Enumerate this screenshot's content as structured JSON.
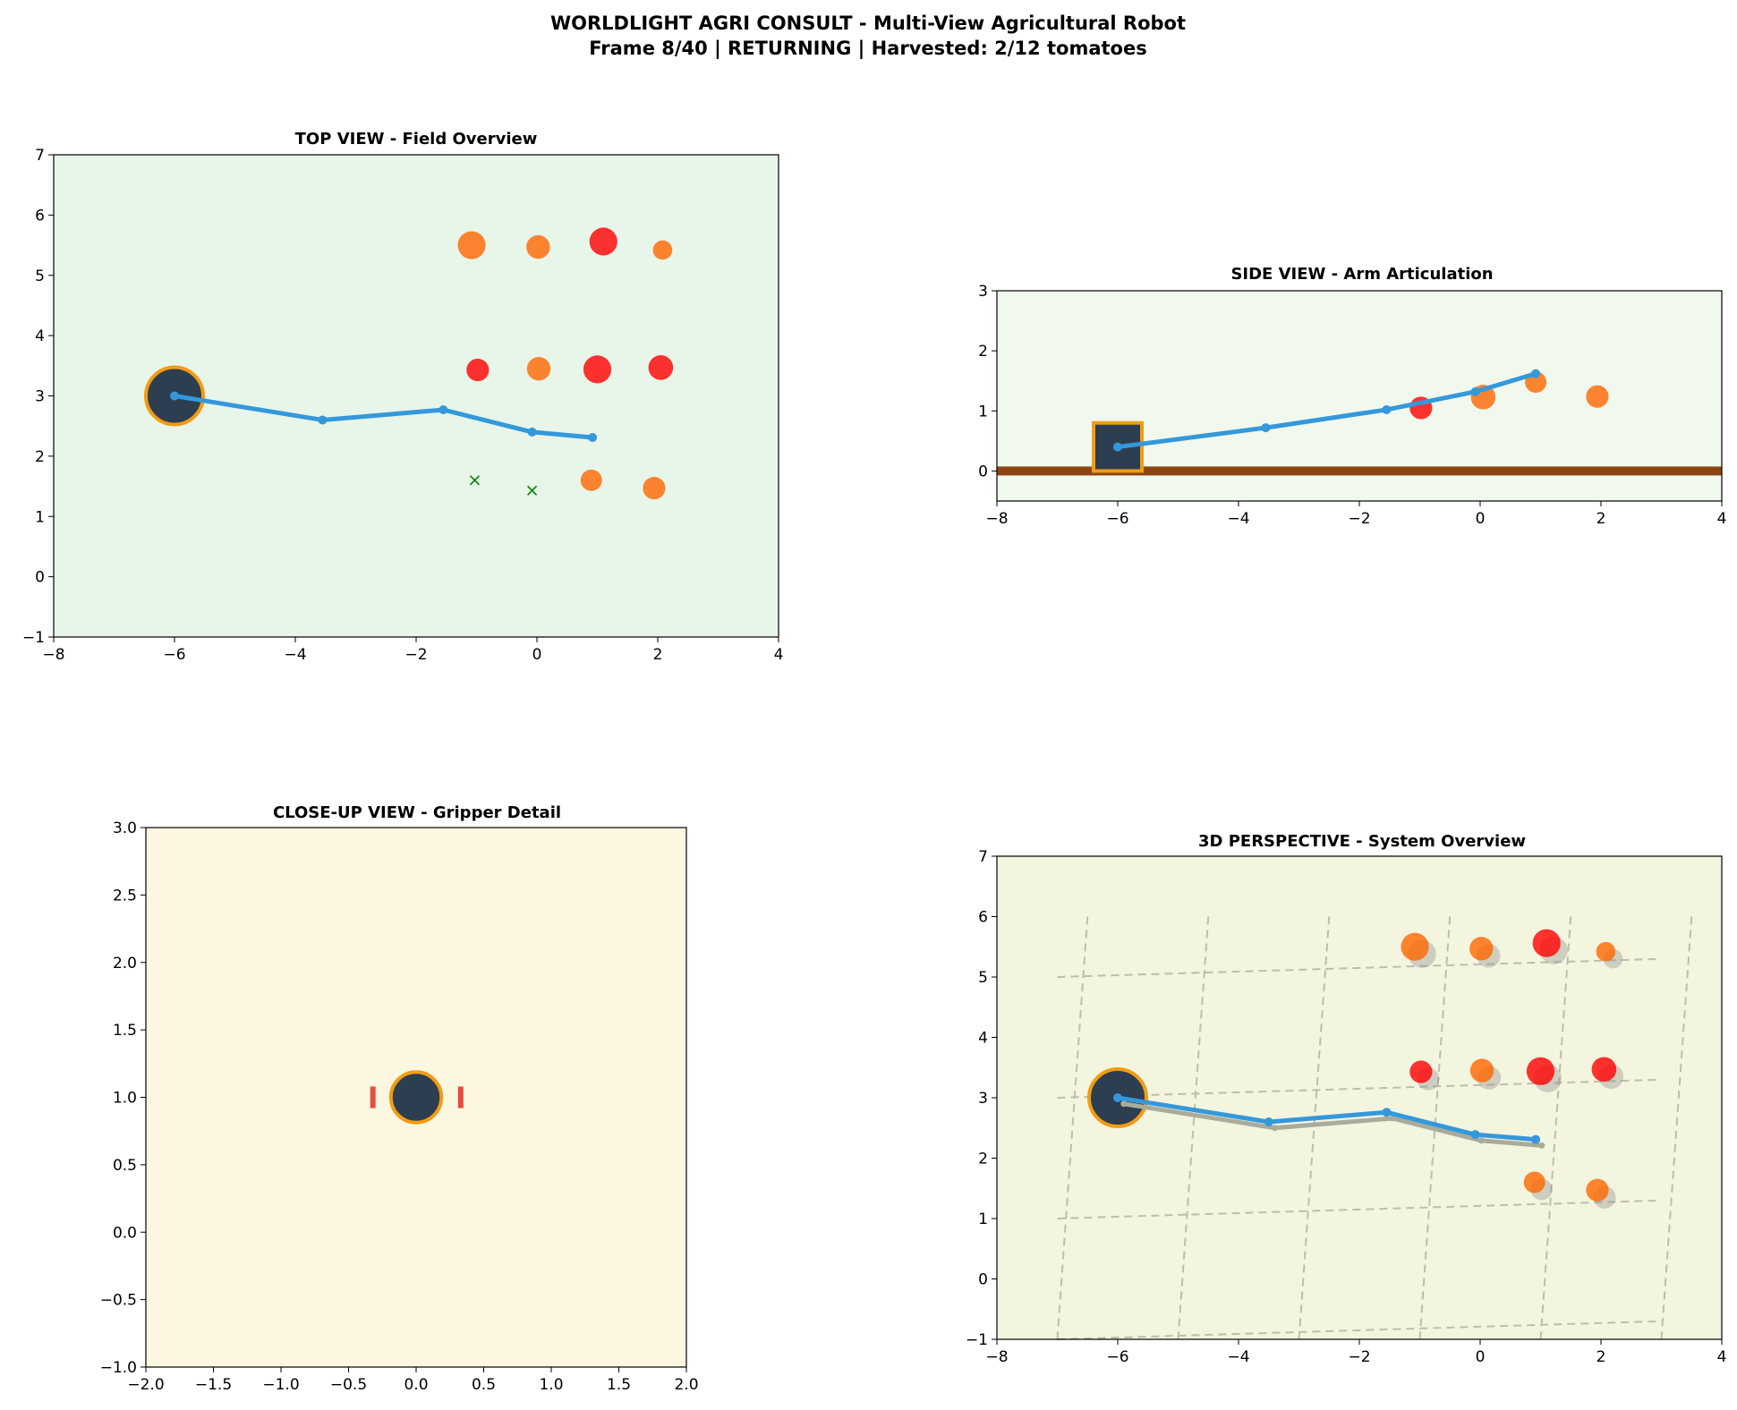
{
  "figure": {
    "title_line1": "WORLDLIGHT AGRI CONSULT - Multi-View Agricultural Robot",
    "title_line2": "Frame 8/40 | RETURNING | Harvested: 2/12 tomatoes"
  },
  "colors": {
    "arm": "#3498db",
    "robot_body": "#2c3e50",
    "robot_edge": "#f39c12",
    "ripe_tomato": "#ff0000",
    "semi_ripe_tomato": "#ff6600",
    "harvested_marker": "#008000",
    "ground": "#8b4513",
    "gripper_finger": "#e74c3c",
    "top_bg": "#e8f5e9",
    "side_bg": "#f1f8ee",
    "closeup_bg": "#fdf7e1",
    "perspective_bg": "#f3f5df"
  },
  "chart_data": [
    {
      "id": "top",
      "type": "scatter",
      "title": "TOP VIEW - Field Overview",
      "xlim": [
        -8,
        4
      ],
      "ylim": [
        -1,
        7
      ],
      "xticks": [
        "−8",
        "−6",
        "−4",
        "−2",
        "0",
        "2",
        "4"
      ],
      "yticks": [
        "−1",
        "0",
        "1",
        "2",
        "3",
        "4",
        "5",
        "6",
        "7"
      ],
      "robot_base": {
        "x": -6.0,
        "y": 3.0
      },
      "arm_joints": [
        {
          "x": -6.0,
          "y": 3.0
        },
        {
          "x": -3.55,
          "y": 2.6
        },
        {
          "x": -1.55,
          "y": 2.77
        },
        {
          "x": -0.08,
          "y": 2.4
        },
        {
          "x": 0.92,
          "y": 2.31
        }
      ],
      "tomatoes": [
        {
          "x": -1.08,
          "y": 5.5,
          "ripeness": "semi-ripe",
          "size": 1.3
        },
        {
          "x": 0.02,
          "y": 5.47,
          "ripeness": "semi-ripe",
          "size": 1.1
        },
        {
          "x": 1.1,
          "y": 5.56,
          "ripeness": "ripe",
          "size": 1.3
        },
        {
          "x": 2.08,
          "y": 5.42,
          "ripeness": "semi-ripe",
          "size": 0.9
        },
        {
          "x": -0.98,
          "y": 3.43,
          "ripeness": "ripe",
          "size": 1.05
        },
        {
          "x": 0.03,
          "y": 3.45,
          "ripeness": "semi-ripe",
          "size": 1.1
        },
        {
          "x": 1.0,
          "y": 3.44,
          "ripeness": "ripe",
          "size": 1.3
        },
        {
          "x": 2.05,
          "y": 3.47,
          "ripeness": "ripe",
          "size": 1.15
        },
        {
          "x": 0.9,
          "y": 1.6,
          "ripeness": "semi-ripe",
          "size": 1.0
        },
        {
          "x": 1.94,
          "y": 1.47,
          "ripeness": "semi-ripe",
          "size": 1.05
        }
      ],
      "harvested": [
        {
          "x": -1.03,
          "y": 1.6
        },
        {
          "x": -0.08,
          "y": 1.43
        }
      ]
    },
    {
      "id": "side",
      "type": "line",
      "title": "SIDE VIEW - Arm Articulation",
      "xlim": [
        -8,
        4
      ],
      "ylim": [
        -0.5,
        3
      ],
      "xticks": [
        "−8",
        "−6",
        "−4",
        "−2",
        "0",
        "2",
        "4"
      ],
      "yticks": [
        "0",
        "1",
        "2",
        "3"
      ],
      "ground_y": 0,
      "robot_box": {
        "x0": -6.4,
        "x1": -5.6,
        "y0": 0.0,
        "y1": 0.8
      },
      "arm_joints": [
        {
          "x": -6.0,
          "y": 0.4
        },
        {
          "x": -3.55,
          "y": 0.72
        },
        {
          "x": -1.55,
          "y": 1.02
        },
        {
          "x": -0.08,
          "y": 1.32
        },
        {
          "x": 0.92,
          "y": 1.62
        }
      ],
      "tomatoes": [
        {
          "x": -0.98,
          "y": 1.05,
          "ripeness": "ripe",
          "size": 1.05
        },
        {
          "x": 0.05,
          "y": 1.23,
          "ripeness": "semi-ripe",
          "size": 1.15
        },
        {
          "x": 0.92,
          "y": 1.48,
          "ripeness": "semi-ripe",
          "size": 1.0
        },
        {
          "x": 1.94,
          "y": 1.24,
          "ripeness": "semi-ripe",
          "size": 1.05
        }
      ]
    },
    {
      "id": "closeup",
      "type": "scatter",
      "title": "CLOSE-UP VIEW - Gripper Detail",
      "xlim": [
        -2,
        2
      ],
      "ylim": [
        -1,
        3
      ],
      "xticks": [
        "−2.0",
        "−1.5",
        "−1.0",
        "−0.5",
        "0.0",
        "0.5",
        "1.0",
        "1.5",
        "2.0"
      ],
      "yticks": [
        "−1.0",
        "−0.5",
        "0.0",
        "0.5",
        "1.0",
        "1.5",
        "2.0",
        "2.5",
        "3.0"
      ],
      "gripper": {
        "x": 0.0,
        "y": 1.0,
        "radius": 0.2
      },
      "fingers": [
        {
          "x": -0.32,
          "y0": 0.92,
          "y1": 1.08
        },
        {
          "x": 0.33,
          "y0": 0.92,
          "y1": 1.08
        }
      ]
    },
    {
      "id": "perspective",
      "type": "scatter",
      "title": "3D PERSPECTIVE - System Overview",
      "xlim": [
        -8,
        4
      ],
      "ylim": [
        -1,
        7
      ],
      "xticks": [
        "−8",
        "−6",
        "−4",
        "−2",
        "0",
        "2",
        "4"
      ],
      "yticks": [
        "−1",
        "0",
        "1",
        "2",
        "3",
        "4",
        "5",
        "6",
        "7"
      ],
      "robot_base": {
        "x": -6.0,
        "y": 3.0
      },
      "arm_joints": [
        {
          "x": -6.0,
          "y": 3.0
        },
        {
          "x": -3.5,
          "y": 2.6
        },
        {
          "x": -1.55,
          "y": 2.76
        },
        {
          "x": -0.08,
          "y": 2.39
        },
        {
          "x": 0.92,
          "y": 2.31
        }
      ],
      "arm_shadow": [
        {
          "x": -5.9,
          "y": 2.9
        },
        {
          "x": -3.4,
          "y": 2.5
        },
        {
          "x": -1.45,
          "y": 2.66
        },
        {
          "x": 0.02,
          "y": 2.29
        },
        {
          "x": 1.02,
          "y": 2.21
        }
      ],
      "tomatoes": [
        {
          "x": -1.08,
          "y": 5.5,
          "ripeness": "semi-ripe",
          "size": 1.3
        },
        {
          "x": 0.02,
          "y": 5.47,
          "ripeness": "semi-ripe",
          "size": 1.1
        },
        {
          "x": 1.1,
          "y": 5.56,
          "ripeness": "ripe",
          "size": 1.3
        },
        {
          "x": 2.08,
          "y": 5.42,
          "ripeness": "semi-ripe",
          "size": 0.9
        },
        {
          "x": -0.98,
          "y": 3.43,
          "ripeness": "ripe",
          "size": 1.05
        },
        {
          "x": 0.03,
          "y": 3.45,
          "ripeness": "semi-ripe",
          "size": 1.1
        },
        {
          "x": 1.0,
          "y": 3.44,
          "ripeness": "ripe",
          "size": 1.3
        },
        {
          "x": 2.05,
          "y": 3.47,
          "ripeness": "ripe",
          "size": 1.15
        },
        {
          "x": 0.9,
          "y": 1.6,
          "ripeness": "semi-ripe",
          "size": 1.0
        },
        {
          "x": 1.94,
          "y": 1.47,
          "ripeness": "semi-ripe",
          "size": 1.05
        }
      ],
      "grid_x_lines": [
        {
          "x0": -6.5,
          "y0": 6.0,
          "x1": -7.0,
          "y1": -1.0
        },
        {
          "x0": -4.5,
          "y0": 6.0,
          "x1": -5.0,
          "y1": -1.0
        },
        {
          "x0": -2.5,
          "y0": 6.0,
          "x1": -3.0,
          "y1": -1.0
        },
        {
          "x0": -0.5,
          "y0": 6.0,
          "x1": -1.0,
          "y1": -1.0
        },
        {
          "x0": 1.5,
          "y0": 6.0,
          "x1": 1.0,
          "y1": -1.0
        },
        {
          "x0": 3.5,
          "y0": 6.0,
          "x1": 3.0,
          "y1": -1.0
        }
      ],
      "grid_y_lines": [
        {
          "x0": -7.0,
          "y0": 5.0,
          "x1": 3.0,
          "y1": 5.3
        },
        {
          "x0": -7.0,
          "y0": 3.0,
          "x1": 3.0,
          "y1": 3.3
        },
        {
          "x0": -7.0,
          "y0": 1.0,
          "x1": 3.0,
          "y1": 1.3
        },
        {
          "x0": -7.0,
          "y0": -1.0,
          "x1": 3.0,
          "y1": -0.7
        }
      ]
    }
  ]
}
